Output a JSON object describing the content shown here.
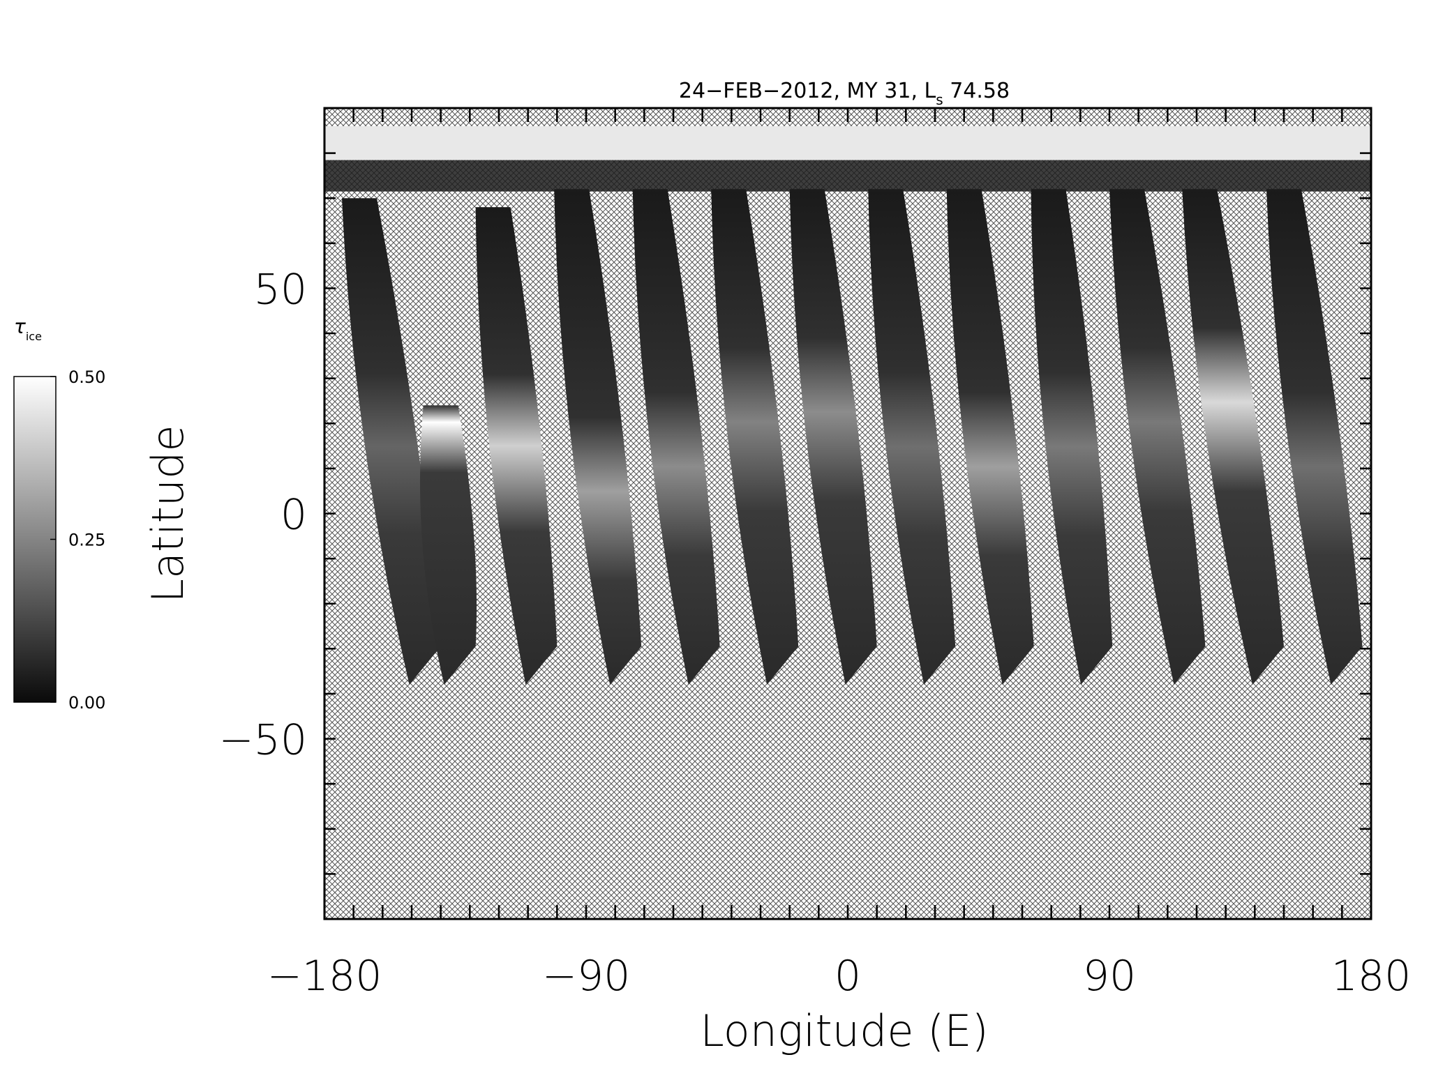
{
  "chart_data": {
    "type": "heatmap",
    "title": "24−FEB−2012, MY 31,  L",
    "title_subscript": "s",
    "title_value": "74.58",
    "xlabel": "Longitude (E)",
    "ylabel": "Latitude",
    "xlim": [
      -180,
      180
    ],
    "ylim": [
      -90,
      90
    ],
    "x_ticks": [
      {
        "value": -180,
        "label": "−180"
      },
      {
        "value": -90,
        "label": "−90"
      },
      {
        "value": 0,
        "label": "0"
      },
      {
        "value": 90,
        "label": "90"
      },
      {
        "value": 180,
        "label": "180"
      }
    ],
    "y_ticks": [
      {
        "value": 50,
        "label": "50"
      },
      {
        "value": 0,
        "label": "0"
      },
      {
        "value": -50,
        "label": "−50"
      }
    ],
    "colorbar": {
      "label_symbol": "τ",
      "label_subscript": "ice",
      "range": [
        0,
        0.5
      ],
      "ticks": [
        {
          "value": 0.5,
          "label": "0.50"
        },
        {
          "value": 0.25,
          "label": "0.25"
        },
        {
          "value": 0,
          "label": "0.00"
        }
      ],
      "colormap": "grayscale"
    },
    "no_data_pattern": "crosshatch",
    "polar_cap_lat": [
      80,
      86
    ],
    "swaths": [
      {
        "lon_top": -174,
        "lon_bottom": -152,
        "lat_top": 70,
        "lat_bottom": -38,
        "bright_lat": 15,
        "bright_level": 0.18
      },
      {
        "lon_top": -146,
        "lon_bottom": -140,
        "lat_top": 24,
        "lat_bottom": -38,
        "bright_lat": 20,
        "bright_level": 0.5
      },
      {
        "lon_top": -128,
        "lon_bottom": -112,
        "lat_top": 68,
        "lat_bottom": -38,
        "bright_lat": 15,
        "bright_level": 0.4
      },
      {
        "lon_top": -101,
        "lon_bottom": -83,
        "lat_top": 72,
        "lat_bottom": -38,
        "bright_lat": 5,
        "bright_level": 0.3
      },
      {
        "lon_top": -74,
        "lon_bottom": -56,
        "lat_top": 72,
        "lat_bottom": -38,
        "bright_lat": 10,
        "bright_level": 0.26
      },
      {
        "lon_top": -47,
        "lon_bottom": -29,
        "lat_top": 72,
        "lat_bottom": -38,
        "bright_lat": 20,
        "bright_level": 0.24
      },
      {
        "lon_top": -20,
        "lon_bottom": -2,
        "lat_top": 72,
        "lat_bottom": -38,
        "bright_lat": 22,
        "bright_level": 0.26
      },
      {
        "lon_top": 7,
        "lon_bottom": 25,
        "lat_top": 72,
        "lat_bottom": -38,
        "bright_lat": 15,
        "bright_level": 0.2
      },
      {
        "lon_top": 34,
        "lon_bottom": 52,
        "lat_top": 72,
        "lat_bottom": -38,
        "bright_lat": 10,
        "bright_level": 0.3
      },
      {
        "lon_top": 63,
        "lon_bottom": 79,
        "lat_top": 72,
        "lat_bottom": -38,
        "bright_lat": 15,
        "bright_level": 0.22
      },
      {
        "lon_top": 90,
        "lon_bottom": 111,
        "lat_top": 72,
        "lat_bottom": -38,
        "bright_lat": 20,
        "bright_level": 0.22
      },
      {
        "lon_top": 115,
        "lon_bottom": 138,
        "lat_top": 72,
        "lat_bottom": -38,
        "bright_lat": 25,
        "bright_level": 0.42
      },
      {
        "lon_top": 144,
        "lon_bottom": 165,
        "lat_top": 72,
        "lat_bottom": -38,
        "bright_lat": 10,
        "bright_level": 0.2
      }
    ]
  }
}
